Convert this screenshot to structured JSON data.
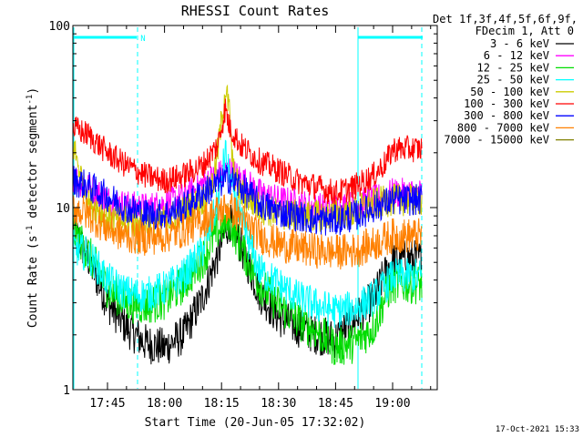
{
  "chart_data": {
    "type": "line",
    "title": "RHESSI Count Rates",
    "xlabel": "Start Time (20-Jun-05 17:32:02)",
    "ylabel_parts": [
      "Count Rate (s",
      "-1",
      " detector segment",
      "-1",
      ")"
    ],
    "y_scale": "log",
    "ylim": [
      1,
      100
    ],
    "y_ticks": [
      {
        "value": 1,
        "label": "1"
      },
      {
        "value": 10,
        "label": "10"
      },
      {
        "value": 100,
        "label": "100"
      }
    ],
    "xlim_minutes": [
      0,
      90
    ],
    "x_ticks": [
      {
        "minute": 15.0,
        "label": "17:45"
      },
      {
        "minute": 30.0,
        "label": "18:00"
      },
      {
        "minute": 45.0,
        "label": "18:15"
      },
      {
        "minute": 60.0,
        "label": "18:30"
      },
      {
        "minute": 75.0,
        "label": "18:45"
      },
      {
        "minute": 90.0,
        "label": "19:00"
      }
    ],
    "legend": {
      "placement": "right",
      "header": [
        "Det 1f,3f,4f,5f,6f,9f,",
        "FDecim 1, Att 0"
      ]
    },
    "series": [
      {
        "name": "3 - 6 keV",
        "color": "#000000",
        "points": [
          [
            0,
            4.5
          ],
          [
            5,
            8.5
          ],
          [
            10,
            5.2
          ],
          [
            15,
            3.0
          ],
          [
            20,
            2.2
          ],
          [
            25,
            1.8
          ],
          [
            30,
            1.7
          ],
          [
            35,
            2.0
          ],
          [
            40,
            3.2
          ],
          [
            44,
            5.5
          ],
          [
            47,
            8.5
          ],
          [
            50,
            6.2
          ],
          [
            55,
            3.4
          ],
          [
            60,
            2.5
          ],
          [
            65,
            2.2
          ],
          [
            70,
            2.0
          ],
          [
            75,
            1.9
          ],
          [
            80,
            2.4
          ],
          [
            85,
            3.2
          ],
          [
            88.5,
            4.5
          ],
          [
            90,
            5.2
          ]
        ]
      },
      {
        "name": "6 - 12 keV",
        "color": "#ff00ff",
        "points": [
          [
            0,
            12
          ],
          [
            5,
            15
          ],
          [
            10,
            13
          ],
          [
            15,
            11
          ],
          [
            20,
            10.3
          ],
          [
            25,
            10
          ],
          [
            30,
            10.5
          ],
          [
            35,
            11.5
          ],
          [
            40,
            13.5
          ],
          [
            44,
            15
          ],
          [
            47,
            16
          ],
          [
            50,
            14.5
          ],
          [
            55,
            12
          ],
          [
            60,
            11
          ],
          [
            65,
            10.5
          ],
          [
            70,
            10
          ],
          [
            75,
            10
          ],
          [
            80,
            10.3
          ],
          [
            85,
            11
          ],
          [
            90,
            12
          ]
        ]
      },
      {
        "name": "12 - 25 keV",
        "color": "#00dd00",
        "points": [
          [
            0,
            3.8
          ],
          [
            5,
            8.0
          ],
          [
            10,
            5.6
          ],
          [
            15,
            3.6
          ],
          [
            20,
            3.0
          ],
          [
            25,
            2.9
          ],
          [
            30,
            3.1
          ],
          [
            35,
            3.8
          ],
          [
            40,
            5.2
          ],
          [
            44,
            7.5
          ],
          [
            47,
            8.5
          ],
          [
            50,
            6.2
          ],
          [
            55,
            3.8
          ],
          [
            60,
            2.9
          ],
          [
            65,
            2.4
          ],
          [
            70,
            2.1
          ],
          [
            75,
            1.7
          ],
          [
            80,
            1.8
          ],
          [
            85,
            2.2
          ],
          [
            88.5,
            3.4
          ],
          [
            90,
            3.8
          ]
        ]
      },
      {
        "name": "25 - 50 keV",
        "color": "#00ffff",
        "points": [
          [
            0,
            5.0
          ],
          [
            5,
            6.2
          ],
          [
            10,
            5.5
          ],
          [
            15,
            4.0
          ],
          [
            20,
            3.4
          ],
          [
            25,
            3.3
          ],
          [
            30,
            3.6
          ],
          [
            35,
            4.2
          ],
          [
            40,
            5.8
          ],
          [
            44,
            10.5
          ],
          [
            46,
            20
          ],
          [
            47,
            15
          ],
          [
            50,
            8.5
          ],
          [
            55,
            4.5
          ],
          [
            60,
            3.8
          ],
          [
            65,
            3.2
          ],
          [
            70,
            2.9
          ],
          [
            75,
            2.7
          ],
          [
            80,
            2.8
          ],
          [
            85,
            3.2
          ],
          [
            88.5,
            3.8
          ],
          [
            90,
            4.2
          ]
        ]
      },
      {
        "name": "50 - 100 keV",
        "color": "#cccc00",
        "points": [
          [
            0,
            12
          ],
          [
            2,
            14
          ],
          [
            4,
            22
          ],
          [
            6,
            22
          ],
          [
            8,
            15
          ],
          [
            10,
            11
          ],
          [
            15,
            8.8
          ],
          [
            20,
            8.3
          ],
          [
            25,
            8.2
          ],
          [
            30,
            8.5
          ],
          [
            35,
            9.5
          ],
          [
            40,
            11
          ],
          [
            43,
            14
          ],
          [
            45,
            30
          ],
          [
            46,
            45
          ],
          [
            47,
            35
          ],
          [
            48,
            16
          ],
          [
            50,
            12
          ],
          [
            55,
            10
          ],
          [
            60,
            9.2
          ],
          [
            65,
            9.0
          ],
          [
            70,
            9.0
          ],
          [
            75,
            9.2
          ],
          [
            80,
            9.5
          ],
          [
            85,
            10.5
          ],
          [
            90,
            11
          ]
        ]
      },
      {
        "name": "100 - 300 keV",
        "color": "#ff0000",
        "points": [
          [
            0,
            24
          ],
          [
            5,
            28
          ],
          [
            10,
            25
          ],
          [
            15,
            20
          ],
          [
            20,
            17
          ],
          [
            25,
            15
          ],
          [
            30,
            14
          ],
          [
            35,
            15
          ],
          [
            40,
            17
          ],
          [
            44,
            22
          ],
          [
            46,
            35
          ],
          [
            47,
            28
          ],
          [
            50,
            22
          ],
          [
            55,
            18
          ],
          [
            60,
            16
          ],
          [
            65,
            14
          ],
          [
            70,
            13
          ],
          [
            75,
            12
          ],
          [
            80,
            13
          ],
          [
            85,
            15
          ],
          [
            88.5,
            18
          ],
          [
            90,
            21
          ]
        ]
      },
      {
        "name": "300 - 800 keV",
        "color": "#0000ff",
        "points": [
          [
            0,
            12.5
          ],
          [
            5,
            14.5
          ],
          [
            10,
            13
          ],
          [
            15,
            11.5
          ],
          [
            20,
            10
          ],
          [
            25,
            9.2
          ],
          [
            30,
            9.2
          ],
          [
            35,
            10
          ],
          [
            40,
            12
          ],
          [
            44,
            13.5
          ],
          [
            47,
            14.5
          ],
          [
            50,
            13
          ],
          [
            55,
            10.5
          ],
          [
            60,
            9.5
          ],
          [
            65,
            9.0
          ],
          [
            70,
            8.5
          ],
          [
            75,
            8.5
          ],
          [
            80,
            9
          ],
          [
            85,
            10
          ],
          [
            90,
            11
          ]
        ]
      },
      {
        "name": "800 - 7000 keV",
        "color": "#ff8000",
        "points": [
          [
            0,
            9
          ],
          [
            5,
            10.2
          ],
          [
            10,
            9.2
          ],
          [
            15,
            7.7
          ],
          [
            20,
            7.0
          ],
          [
            25,
            6.8
          ],
          [
            30,
            7.0
          ],
          [
            35,
            7.5
          ],
          [
            40,
            8.5
          ],
          [
            44,
            9.5
          ],
          [
            47,
            10
          ],
          [
            50,
            8.8
          ],
          [
            55,
            7.0
          ],
          [
            60,
            6.3
          ],
          [
            65,
            6.0
          ],
          [
            70,
            5.8
          ],
          [
            75,
            5.7
          ],
          [
            80,
            5.8
          ],
          [
            85,
            6.3
          ],
          [
            90,
            7.0
          ]
        ]
      },
      {
        "name": "7000 - 15000 keV",
        "color": "#808000",
        "points": []
      }
    ],
    "markers": {
      "top_bars_color": "#00ffff",
      "n_label": "N"
    }
  },
  "footer": {
    "timestamp": "17-Oct-2021 15:33"
  }
}
